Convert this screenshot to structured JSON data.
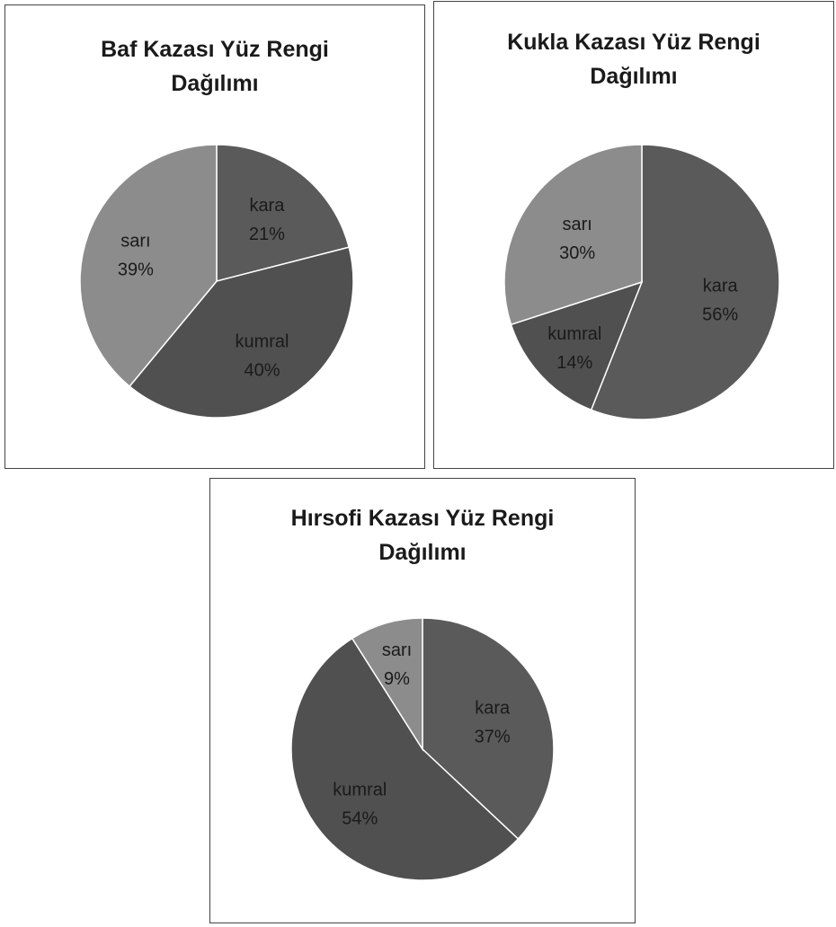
{
  "chart_data": [
    {
      "type": "pie",
      "title_line1": "Baf Kazası Yüz Rengi",
      "title_line2": "Dağılımı",
      "slices": [
        {
          "label": "kara",
          "value": 21,
          "pct": "21%",
          "color": "#5a5a5a"
        },
        {
          "label": "kumral",
          "value": 40,
          "pct": "40%",
          "color": "#505050"
        },
        {
          "label": "sarı",
          "value": 39,
          "pct": "39%",
          "color": "#8c8c8c"
        }
      ]
    },
    {
      "type": "pie",
      "title_line1": "Kukla Kazası Yüz Rengi",
      "title_line2": "Dağılımı",
      "slices": [
        {
          "label": "kara",
          "value": 56,
          "pct": "56%",
          "color": "#5a5a5a"
        },
        {
          "label": "kumral",
          "value": 14,
          "pct": "14%",
          "color": "#505050"
        },
        {
          "label": "sarı",
          "value": 30,
          "pct": "30%",
          "color": "#8c8c8c"
        }
      ]
    },
    {
      "type": "pie",
      "title_line1": "Hırsofi Kazası Yüz Rengi",
      "title_line2": "Dağılımı",
      "slices": [
        {
          "label": "kara",
          "value": 37,
          "pct": "37%",
          "color": "#5a5a5a"
        },
        {
          "label": "kumral",
          "value": 54,
          "pct": "54%",
          "color": "#505050"
        },
        {
          "label": "sarı",
          "value": 9,
          "pct": "9%",
          "color": "#8c8c8c"
        }
      ]
    }
  ]
}
